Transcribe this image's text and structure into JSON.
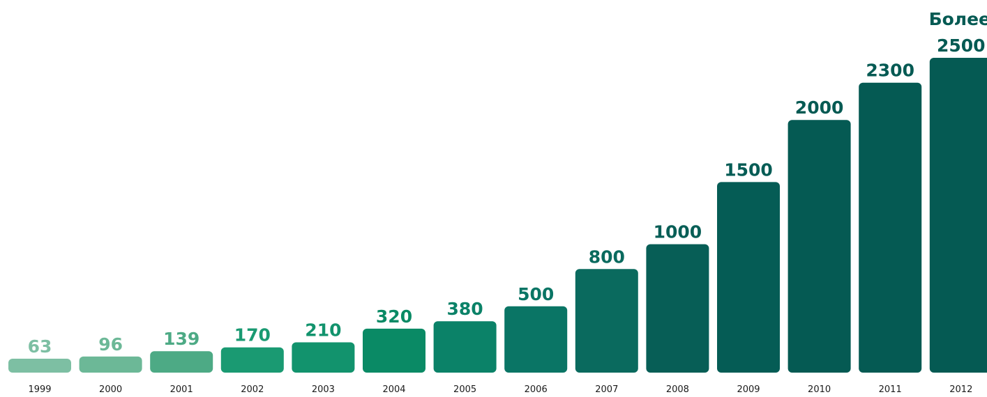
{
  "chart_data": {
    "type": "bar",
    "categories": [
      "1999",
      "2000",
      "2001",
      "2002",
      "2003",
      "2004",
      "2005",
      "2006",
      "2007",
      "2008",
      "2009",
      "2010",
      "2011",
      "2012"
    ],
    "values": [
      63,
      96,
      139,
      170,
      210,
      320,
      380,
      500,
      800,
      1000,
      1500,
      2000,
      2300,
      2500
    ],
    "labels": [
      "63",
      "96",
      "139",
      "170",
      "210",
      "320",
      "380",
      "500",
      "800",
      "1000",
      "1500",
      "2000",
      "2300",
      "2500"
    ],
    "last_label_prefix": "Более",
    "ylim": [
      0,
      2500
    ],
    "grid": false,
    "colors": [
      "#7dbfa3",
      "#6cb897",
      "#4daa85",
      "#1a9a72",
      "#12936d",
      "#0a8a65",
      "#0b8268",
      "#0a7565",
      "#0a6a5e",
      "#075e56",
      "#055c55",
      "#055a53",
      "#055a53",
      "#055a53"
    ]
  }
}
